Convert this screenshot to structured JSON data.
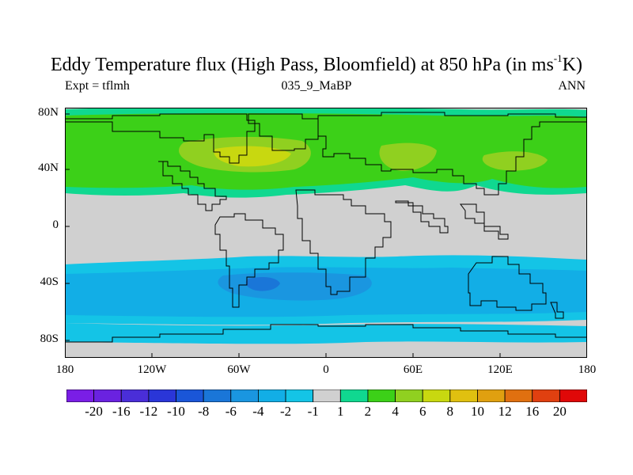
{
  "title": {
    "main": "Eddy Temperature flux (High Pass, Bloomfield) at 850 hPa (in ms",
    "sup": "-1",
    "tail": "K)"
  },
  "subtitle": {
    "left": "Expt = tflmh",
    "center": "035_9_MaBP",
    "right": "ANN"
  },
  "axes": {
    "y_ticks": [
      "80N",
      "40N",
      "0",
      "40S",
      "80S"
    ],
    "x_ticks": [
      "180",
      "120W",
      "60W",
      "0",
      "60E",
      "120E",
      "180"
    ]
  },
  "colorbar": {
    "labels": [
      "-20",
      "-16",
      "-12",
      "-10",
      "-8",
      "-6",
      "-4",
      "-2",
      "-1",
      "1",
      "2",
      "4",
      "6",
      "8",
      "10",
      "12",
      "16",
      "20"
    ],
    "colors": [
      "#7a1ee6",
      "#6a22e0",
      "#4a2ed8",
      "#2a36d8",
      "#1a56d8",
      "#1a76d8",
      "#1a96e0",
      "#12aee6",
      "#14c4e6",
      "#d0d0d0",
      "#10d890",
      "#3cd018",
      "#90d020",
      "#c8d810",
      "#e0c010",
      "#e0a010",
      "#e07010",
      "#e04010",
      "#e00808"
    ]
  },
  "map_colors": {
    "land_bg": "#d0d0d0",
    "pos_light": "#10d890",
    "pos_mid": "#3cd018",
    "pos_strong": "#90d020",
    "pos_peak": "#c8d810",
    "neg_light": "#14c4e6",
    "neg_mid": "#12aee6",
    "neg_strong": "#1a96e0",
    "neg_peak": "#1a76d8"
  }
}
